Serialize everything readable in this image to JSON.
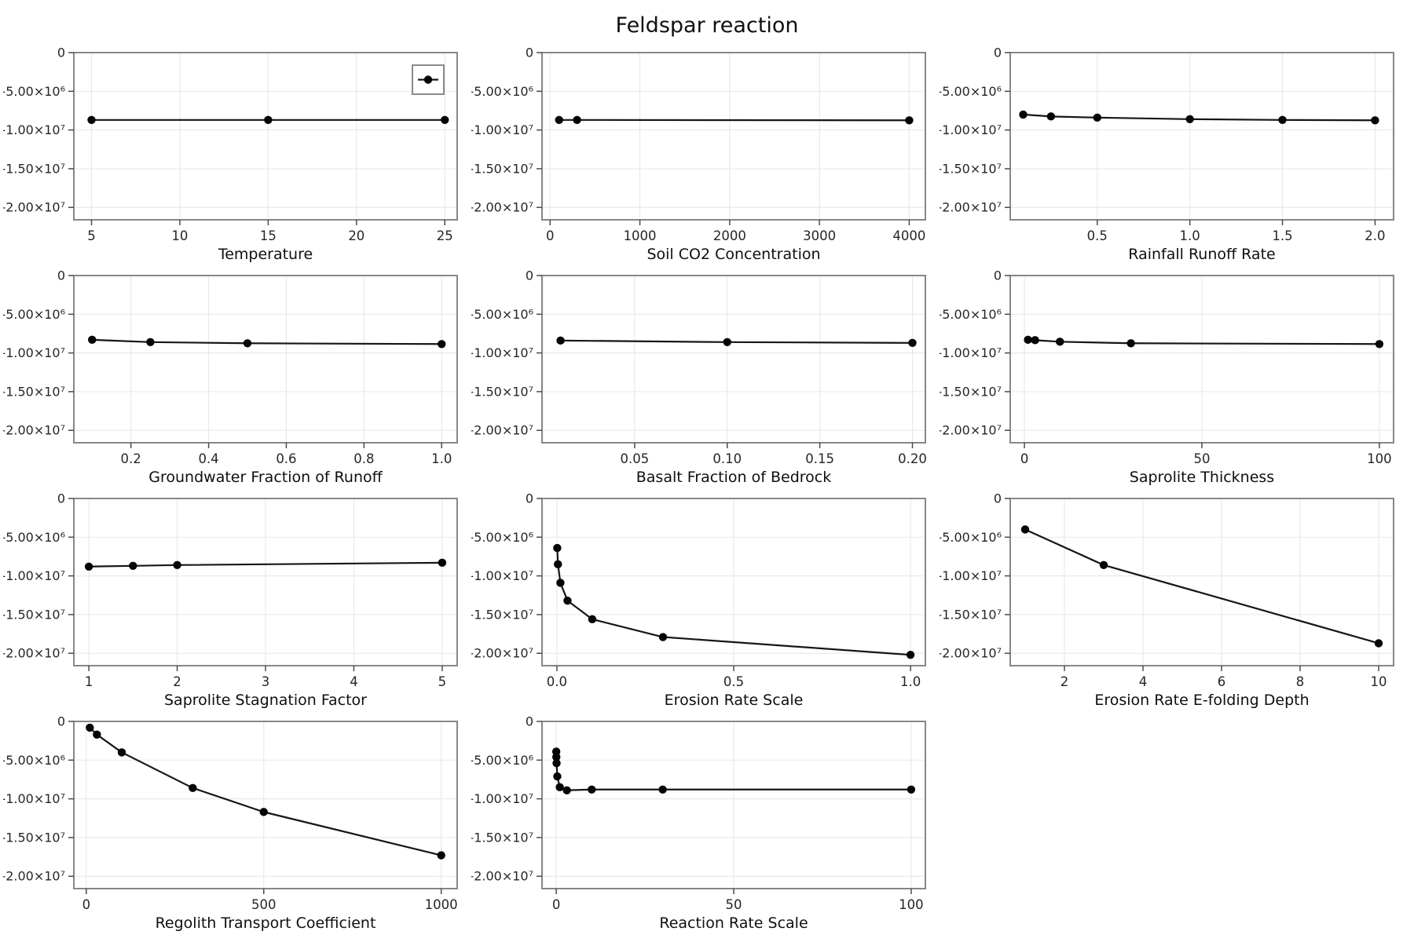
{
  "page": {
    "title": "Feldspar reaction"
  },
  "style": {
    "background": "#ffffff",
    "line_color": "#161616",
    "marker_color": "#050505",
    "spine_color": "#878787",
    "grid_color": "#e9e9e9",
    "tick_color": "#4a4a4a",
    "tick_label_color": "#262626",
    "axis_label_color": "#0f0f0f",
    "legend_border_color": "#8a8a8a",
    "legend_fill": "#ffffff"
  },
  "y_axis": {
    "lim": [
      -21600000,
      0
    ],
    "ticks": [
      0,
      -5000000,
      -10000000,
      -15000000,
      -20000000
    ],
    "tick_labels": [
      "0",
      "-5.00×10⁶",
      "-1.00×10⁷",
      "-1.50×10⁷",
      "-2.00×10⁷"
    ]
  },
  "chart_data": [
    {
      "type": "line",
      "id": "temperature",
      "xlabel": "Temperature",
      "ylabel": "",
      "x": [
        5,
        15,
        25
      ],
      "y": [
        -8700000,
        -8700000,
        -8700000
      ],
      "x_ticks": [
        5,
        10,
        15,
        20,
        25
      ],
      "x_tick_labels": [
        "5",
        "10",
        "15",
        "20",
        "25"
      ],
      "xlim": [
        4.0,
        25.7
      ],
      "legend": {
        "visible": true,
        "label": "",
        "position": "top-right"
      }
    },
    {
      "type": "line",
      "id": "soil-co2-concentration",
      "xlabel": "Soil CO2 Concentration",
      "ylabel": "",
      "x": [
        100,
        300,
        4000
      ],
      "y": [
        -8700000,
        -8700000,
        -8750000
      ],
      "x_ticks": [
        0,
        1000,
        2000,
        3000,
        4000
      ],
      "x_tick_labels": [
        "0",
        "1000",
        "2000",
        "3000",
        "4000"
      ],
      "xlim": [
        -90,
        4180
      ]
    },
    {
      "type": "line",
      "id": "rainfall-runoff-rate",
      "xlabel": "Rainfall Runoff Rate",
      "ylabel": "",
      "x": [
        0.1,
        0.25,
        0.5,
        1.0,
        1.5,
        2.0
      ],
      "y": [
        -8000000,
        -8250000,
        -8400000,
        -8600000,
        -8700000,
        -8750000
      ],
      "x_ticks": [
        0.5,
        1.0,
        1.5,
        2.0
      ],
      "x_tick_labels": [
        "0.5",
        "1.0",
        "1.5",
        "2.0"
      ],
      "xlim": [
        0.03,
        2.1
      ]
    },
    {
      "type": "line",
      "id": "groundwater-fraction-of-runoff",
      "xlabel": "Groundwater Fraction of Runoff",
      "ylabel": "",
      "x": [
        0.1,
        0.25,
        0.5,
        1.0
      ],
      "y": [
        -8300000,
        -8600000,
        -8750000,
        -8850000
      ],
      "x_ticks": [
        0.2,
        0.4,
        0.6,
        0.8,
        1.0
      ],
      "x_tick_labels": [
        "0.2",
        "0.4",
        "0.6",
        "0.8",
        "1.0"
      ],
      "xlim": [
        0.053,
        1.04
      ]
    },
    {
      "type": "line",
      "id": "basalt-fraction-of-bedrock",
      "xlabel": "Basalt Fraction of Bedrock",
      "ylabel": "",
      "x": [
        0.01,
        0.1,
        0.2
      ],
      "y": [
        -8400000,
        -8600000,
        -8700000
      ],
      "x_ticks": [
        0.05,
        0.1,
        0.15,
        0.2
      ],
      "x_tick_labels": [
        "0.05",
        "0.10",
        "0.15",
        "0.20"
      ],
      "xlim": [
        0,
        0.207
      ]
    },
    {
      "type": "line",
      "id": "saprolite-thickness",
      "xlabel": "Saprolite Thickness",
      "ylabel": "",
      "x": [
        1,
        3,
        10,
        30,
        100
      ],
      "y": [
        -8300000,
        -8350000,
        -8550000,
        -8750000,
        -8850000
      ],
      "x_ticks": [
        0,
        50,
        100
      ],
      "x_tick_labels": [
        "0",
        "50",
        "100"
      ],
      "xlim": [
        -4,
        104
      ]
    },
    {
      "type": "line",
      "id": "saprolite-stagnation-factor",
      "xlabel": "Saprolite Stagnation Factor",
      "ylabel": "",
      "x": [
        1,
        1.5,
        2,
        5
      ],
      "y": [
        -8800000,
        -8700000,
        -8600000,
        -8300000
      ],
      "x_ticks": [
        1,
        2,
        3,
        4,
        5
      ],
      "x_tick_labels": [
        "1",
        "2",
        "3",
        "4",
        "5"
      ],
      "xlim": [
        0.83,
        5.17
      ]
    },
    {
      "type": "line",
      "id": "erosion-rate-scale",
      "xlabel": "Erosion Rate Scale",
      "ylabel": "",
      "x": [
        0.001,
        0.003,
        0.01,
        0.03,
        0.1,
        0.3,
        1.0
      ],
      "y": [
        -6400000,
        -8500000,
        -10900000,
        -13200000,
        -15600000,
        -17900000,
        -20200000
      ],
      "x_ticks": [
        0,
        0.5,
        1
      ],
      "x_tick_labels": [
        "0.0",
        "0.5",
        "1.0"
      ],
      "xlim": [
        -0.042,
        1.042
      ]
    },
    {
      "type": "line",
      "id": "erosion-rate-e-folding-depth",
      "xlabel": "Erosion Rate E-folding Depth",
      "ylabel": "",
      "x": [
        1,
        3,
        10
      ],
      "y": [
        -4000000,
        -8600000,
        -18700000
      ],
      "x_ticks": [
        2,
        4,
        6,
        8,
        10
      ],
      "x_tick_labels": [
        "2",
        "4",
        "6",
        "8",
        "10"
      ],
      "xlim": [
        0.62,
        10.38
      ]
    },
    {
      "type": "line",
      "id": "regolith-transport-coefficient",
      "xlabel": "Regolith Transport Coefficient",
      "ylabel": "",
      "x": [
        10,
        30,
        100,
        300,
        500,
        1000
      ],
      "y": [
        -800000,
        -1700000,
        -4000000,
        -8600000,
        -11700000,
        -17300000
      ],
      "x_ticks": [
        0,
        500,
        1000
      ],
      "x_tick_labels": [
        "0",
        "500",
        "1000"
      ],
      "xlim": [
        -35,
        1045
      ]
    },
    {
      "type": "line",
      "id": "reaction-rate-scale",
      "xlabel": "Reaction Rate Scale",
      "ylabel": "",
      "x": [
        0.01,
        0.03,
        0.1,
        0.3,
        1,
        3,
        10,
        30,
        100
      ],
      "y": [
        -3900000,
        -4600000,
        -5400000,
        -7100000,
        -8500000,
        -8900000,
        -8800000,
        -8800000,
        -8800000
      ],
      "x_ticks": [
        0,
        50,
        100
      ],
      "x_tick_labels": [
        "0",
        "50",
        "100"
      ],
      "xlim": [
        -4,
        104
      ]
    }
  ]
}
